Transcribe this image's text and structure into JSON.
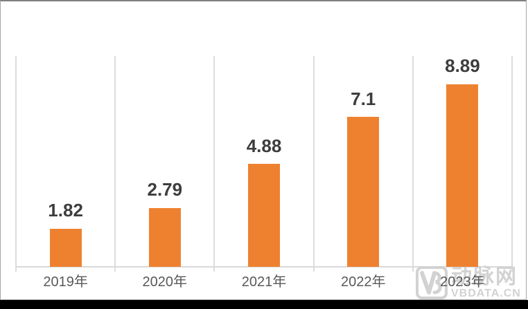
{
  "chart_data": {
    "type": "bar",
    "categories": [
      "2019年",
      "2020年",
      "2021年",
      "2022年",
      "2023年"
    ],
    "values": [
      1.82,
      2.79,
      4.88,
      7.1,
      8.89
    ],
    "value_labels": [
      "1.82",
      "2.79",
      "4.88",
      "7.1",
      "8.89"
    ],
    "title": "",
    "xlabel": "",
    "ylabel": "",
    "ylim": [
      0,
      10
    ],
    "grid": "vertical category separator lines, light gray; no horizontal gridlines; no y-axis tick labels",
    "legend": "none",
    "bar_color": "#ee8130",
    "data_label_color": "#3d3d3d",
    "axis_label_color": "#595959",
    "gridline_color": "#dcdcdc"
  },
  "watermark": {
    "logo": "VB",
    "brand_cn": "动脉网",
    "site_url": "VBDATA.CN",
    "color": "#d2d2d2"
  }
}
